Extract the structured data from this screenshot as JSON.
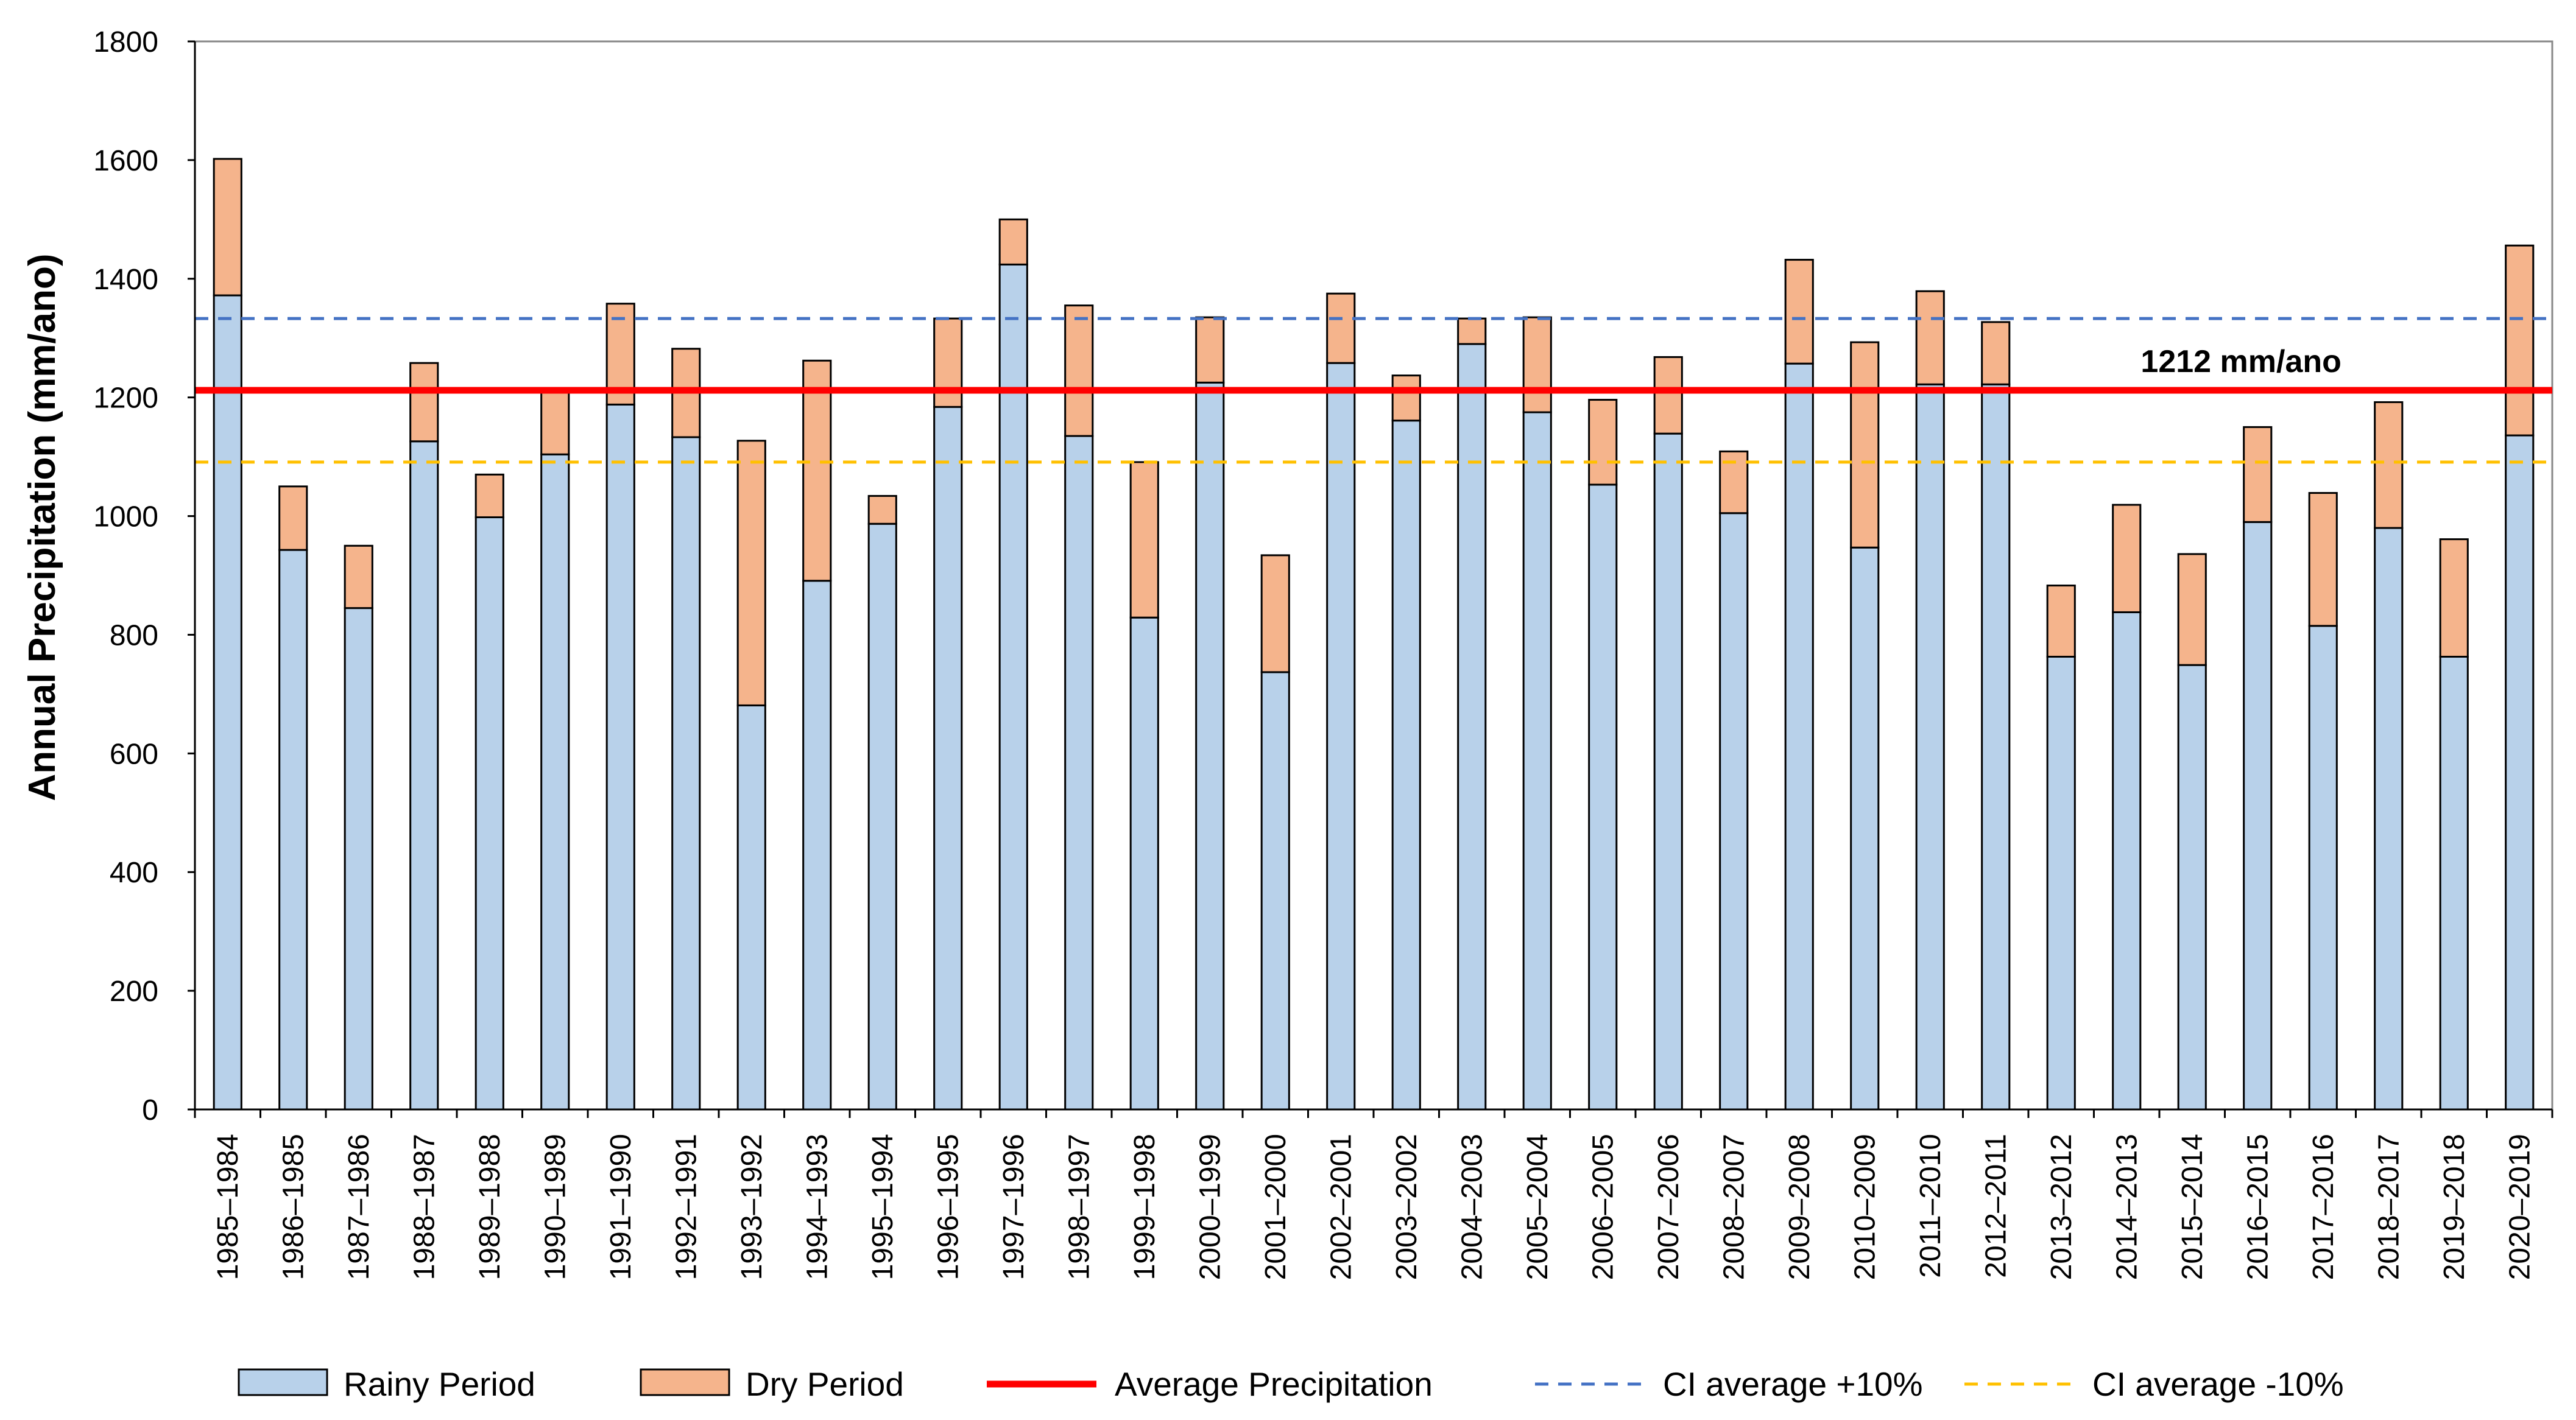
{
  "chart_data": {
    "type": "bar",
    "stacked": true,
    "ylabel": "Annual Precipitation (mm/ano)",
    "xlabel": "",
    "ylim": [
      0,
      1800
    ],
    "yticks": [
      0,
      200,
      400,
      600,
      800,
      1000,
      1200,
      1400,
      1600,
      1800
    ],
    "grid": false,
    "legend_position": "bottom",
    "categories": [
      "1985–1984",
      "1986–1985",
      "1987–1986",
      "1988–1987",
      "1989–1988",
      "1990–1989",
      "1991–1990",
      "1992–1991",
      "1993–1992",
      "1994–1993",
      "1995–1994",
      "1996–1995",
      "1997–1996",
      "1998–1997",
      "1999–1998",
      "2000–1999",
      "2001–2000",
      "2002–2001",
      "2003–2002",
      "2004–2003",
      "2005–2004",
      "2006–2005",
      "2007–2006",
      "2008–2007",
      "2009–2008",
      "2010–2009",
      "2011–2010",
      "2012–2011",
      "2013–2012",
      "2014–2013",
      "2015–2014",
      "2016–2015",
      "2017–2016",
      "2018–2017",
      "2019–2018",
      "2020–2019"
    ],
    "series": [
      {
        "name": "Rainy Period",
        "color": "#B8D1EA",
        "values": [
          1372,
          943,
          845,
          1126,
          998,
          1104,
          1188,
          1133,
          681,
          891,
          987,
          1184,
          1424,
          1135,
          829,
          1225,
          737,
          1258,
          1161,
          1290,
          1175,
          1053,
          1139,
          1005,
          1257,
          947,
          1222,
          1222,
          763,
          838,
          749,
          990,
          815,
          980,
          763,
          1136
        ]
      },
      {
        "name": "Dry Period",
        "color": "#F5B48C",
        "values": [
          230,
          107,
          105,
          132,
          72,
          108,
          170,
          149,
          446,
          371,
          47,
          149,
          76,
          220,
          262,
          110,
          197,
          117,
          76,
          43,
          160,
          143,
          129,
          104,
          175,
          346,
          157,
          105,
          120,
          181,
          187,
          160,
          224,
          212,
          198,
          320
        ]
      }
    ],
    "reference_lines": [
      {
        "name": "Average Precipitation",
        "value": 1212,
        "color": "#FF0000",
        "style": "solid",
        "label": "1212 mm/ano"
      },
      {
        "name": "CI average +10%",
        "value": 1333,
        "color": "#4472C4",
        "style": "dashed"
      },
      {
        "name": "CI average -10%",
        "value": 1091,
        "color": "#FFC000",
        "style": "dashed"
      }
    ]
  }
}
